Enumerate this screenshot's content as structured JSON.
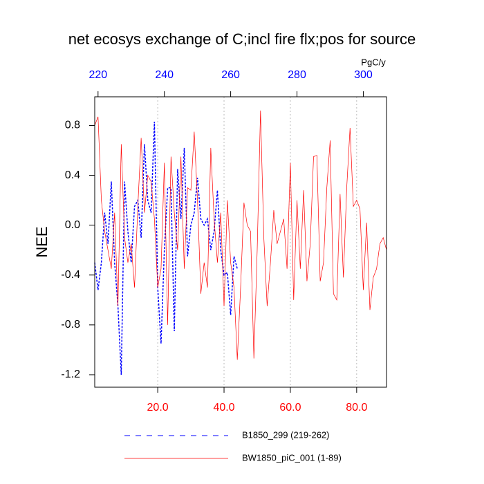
{
  "chart_data": {
    "type": "line",
    "title": "net ecosys exchange of C;incl fire flx;pos for source",
    "ylabel": "NEE",
    "x2label": "PgC/y",
    "xlim": [
      1,
      89
    ],
    "xticks": [
      {
        "value": 20,
        "label": "20.0"
      },
      {
        "value": 40,
        "label": "40.0"
      },
      {
        "value": 60,
        "label": "60.0"
      },
      {
        "value": 80,
        "label": "80.0"
      }
    ],
    "xtick_color": "#ff0000",
    "x2lim": [
      219,
      307
    ],
    "x2ticks": [
      220,
      240,
      260,
      280,
      300
    ],
    "x2tick_color": "#0000ff",
    "ylim": [
      -1.3,
      1.03
    ],
    "yticks": [
      {
        "value": 0.8,
        "label": "0.8"
      },
      {
        "value": 0.4,
        "label": "0.4"
      },
      {
        "value": 0,
        "label": "0.0"
      },
      {
        "value": -0.4,
        "label": "-0.4"
      },
      {
        "value": -0.8,
        "label": "-0.8"
      },
      {
        "value": -1.2,
        "label": "-1.2"
      }
    ],
    "grid": "x",
    "series": [
      {
        "name": "B1850_299 (219-262)",
        "color": "#0000ff",
        "dash": "dashed",
        "axis": "x2",
        "x": [
          219,
          220,
          221,
          222,
          223,
          224,
          225,
          226,
          227,
          228,
          229,
          230,
          231,
          232,
          233,
          234,
          235,
          236,
          237,
          238,
          239,
          240,
          241,
          242,
          243,
          244,
          245,
          246,
          247,
          248,
          249,
          250,
          251,
          252,
          253,
          254,
          255,
          256,
          257,
          258,
          259,
          260,
          261,
          262
        ],
        "values": [
          -0.3,
          -0.52,
          -0.3,
          0.1,
          -0.15,
          0.35,
          -0.3,
          -0.65,
          -1.2,
          0.35,
          -0.05,
          -0.3,
          0.15,
          0.2,
          -0.1,
          0.65,
          0.2,
          0.1,
          0.83,
          -0.5,
          -0.95,
          -0.2,
          0.3,
          0.3,
          -0.85,
          0.45,
          0.05,
          0.62,
          -0.25,
          0.0,
          0.1,
          0.38,
          0.05,
          0.0,
          0.05,
          -0.2,
          -0.05,
          0.28,
          -0.2,
          -0.4,
          -0.38,
          -0.72,
          -0.25,
          -0.35
        ]
      },
      {
        "name": "BW1850_piC_001 (1-89)",
        "color": "#ff0000",
        "dash": "solid",
        "axis": "x",
        "x": [
          1,
          2,
          3,
          4,
          5,
          6,
          7,
          8,
          9,
          10,
          11,
          12,
          13,
          14,
          15,
          16,
          17,
          18,
          19,
          20,
          21,
          22,
          23,
          24,
          25,
          26,
          27,
          28,
          29,
          30,
          31,
          32,
          33,
          34,
          35,
          36,
          37,
          38,
          39,
          40,
          41,
          42,
          43,
          44,
          45,
          46,
          47,
          48,
          49,
          50,
          51,
          52,
          53,
          54,
          55,
          56,
          57,
          58,
          59,
          60,
          61,
          62,
          63,
          64,
          65,
          66,
          67,
          68,
          69,
          70,
          71,
          72,
          73,
          74,
          75,
          76,
          77,
          78,
          79,
          80,
          81,
          82,
          83,
          84,
          85,
          86,
          87,
          88,
          89
        ],
        "values": [
          0.8,
          0.87,
          0.2,
          -0.05,
          -0.2,
          -0.35,
          0.1,
          -0.65,
          0.65,
          -0.1,
          -0.3,
          -0.15,
          -0.5,
          0.15,
          0.7,
          0.1,
          0.4,
          0.35,
          0.05,
          -0.5,
          -0.35,
          0.5,
          -0.8,
          0.55,
          0.1,
          -0.2,
          0.55,
          -0.35,
          0.3,
          0.28,
          0.75,
          0.2,
          -0.55,
          -0.3,
          -0.5,
          0.62,
          0.05,
          -0.3,
          0.1,
          -0.65,
          0.2,
          -0.3,
          -0.5,
          -1.08,
          -0.5,
          0.18,
          0.0,
          -0.05,
          -1.07,
          -0.2,
          0.92,
          -0.1,
          -0.65,
          -0.3,
          0.12,
          -0.15,
          -0.05,
          0.05,
          -0.35,
          0.5,
          -0.6,
          0.2,
          -0.35,
          0.28,
          -0.45,
          -0.15,
          0.55,
          0.56,
          -0.45,
          -0.3,
          0.3,
          0.68,
          -0.55,
          -0.6,
          0.25,
          -0.42,
          0.3,
          0.78,
          0.15,
          0.2,
          0.13,
          -0.52,
          0.02,
          -0.68,
          -0.42,
          -0.35,
          -0.15,
          -0.1,
          -0.2
        ]
      }
    ]
  }
}
